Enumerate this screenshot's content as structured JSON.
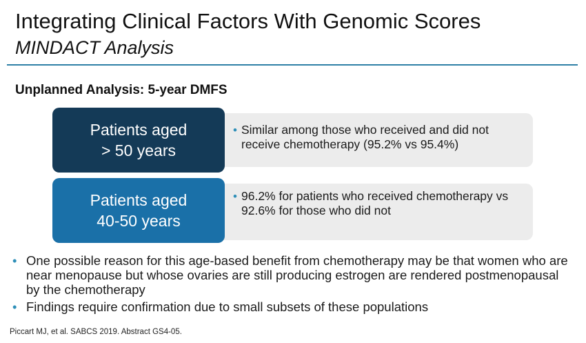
{
  "slide": {
    "title": "Integrating Clinical Factors With Genomic Scores",
    "subtitle": "MINDACT Analysis",
    "section_heading": "Unplanned Analysis: 5-year DMFS",
    "rows": [
      {
        "label_line1": "Patients aged",
        "label_line2": "> 50 years",
        "detail": "Similar among those who received and did not receive chemotherapy (95.2% vs 95.4%)"
      },
      {
        "label_line1": "Patients aged",
        "label_line2": "40-50 years",
        "detail": "96.2% for patients who received chemotherapy vs 92.6% for those who did not"
      }
    ],
    "bullets": [
      "One possible reason for this age-based benefit from chemotherapy may be that women who are near menopause but whose ovaries are still producing estrogen are rendered postmenopausal by the chemotherapy",
      "Findings require confirmation due to small subsets of these populations"
    ],
    "citation": "Piccart MJ, et al. SABCS 2019. Abstract GS4-05."
  },
  "colors": {
    "accent_rule": "#2e7fa6",
    "label_dark": "#143a57",
    "label_mid": "#1a70a8",
    "detail_bg": "#ececec",
    "bullet": "#2e8fb8"
  }
}
